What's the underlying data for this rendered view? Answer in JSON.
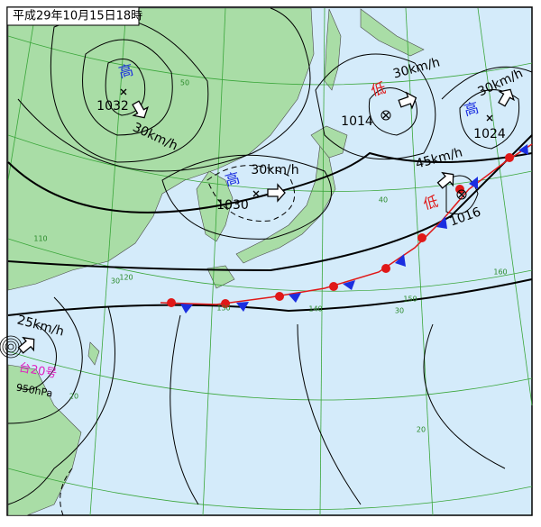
{
  "title": "平成29年10月15日18時",
  "systems": [
    {
      "kind": "高",
      "pressure": "1032",
      "speed": "30km/h"
    },
    {
      "kind": "高",
      "pressure": "1030",
      "speed": "30km/h"
    },
    {
      "kind": "低",
      "pressure": "1014",
      "speed": "30km/h"
    },
    {
      "kind": "高",
      "pressure": "1024",
      "speed": "30km/h"
    },
    {
      "kind": "低",
      "pressure": "1016",
      "speed": "45km/h"
    }
  ],
  "typhoon": {
    "name": "台20号",
    "pressure": "950hPa",
    "speed": "25km/h"
  },
  "grid_labels": [
    "50",
    "40",
    "30",
    "20",
    "20",
    "30",
    "110",
    "120",
    "130",
    "140",
    "150",
    "160"
  ]
}
